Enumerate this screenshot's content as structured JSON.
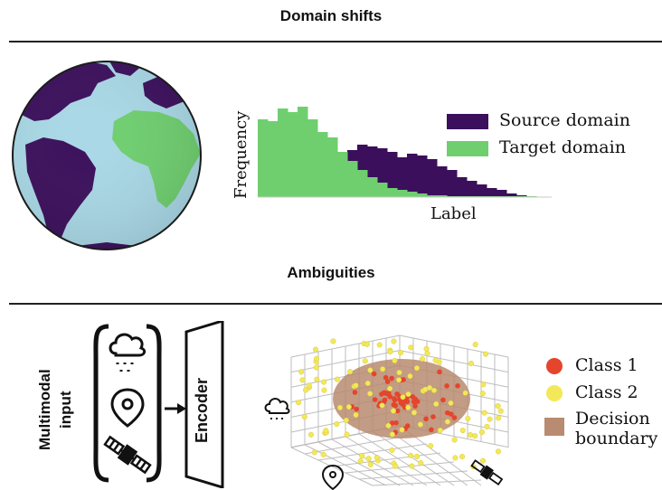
{
  "sections": {
    "domain_shifts_title": "Domain shifts",
    "ambiguities_title": "Ambiguities"
  },
  "histogram": {
    "ylabel": "Frequency",
    "xlabel": "Label",
    "legend": [
      {
        "label": "Source domain",
        "color": "#3b0f5c"
      },
      {
        "label": "Target domain",
        "color": "#6fcf6f"
      }
    ]
  },
  "pipeline": {
    "input_label_line1": "Multimodal",
    "input_label_line2": "input",
    "encoder_label": "Encoder",
    "icons": [
      "weather-cloud-icon",
      "location-pin-icon",
      "satellite-icon"
    ]
  },
  "scatter_legend": [
    {
      "label": "Class 1",
      "color": "#e5452c"
    },
    {
      "label": "Class 2",
      "color": "#f3e85a"
    },
    {
      "label_line1": "Decision",
      "label_line2": "boundary",
      "color": "#b98b70"
    }
  ],
  "colors": {
    "ocean": "#a9d8e6",
    "land_dark": "#3b0f5c",
    "land_green": "#6fcf6f"
  }
}
